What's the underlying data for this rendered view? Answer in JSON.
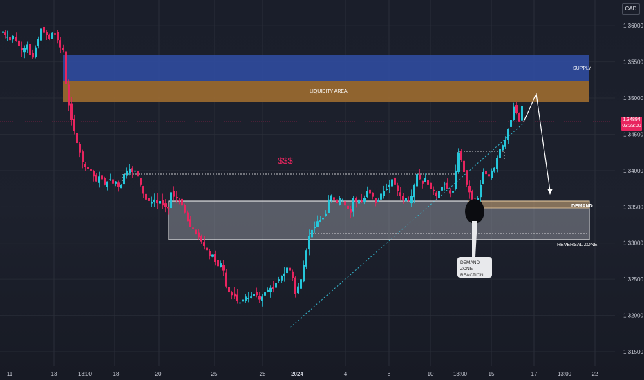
{
  "currency": "CAD",
  "current_price": {
    "price": "1.34894",
    "countdown": "03:23:00"
  },
  "price_axis": [
    "1.36000",
    "1.35500",
    "1.35000",
    "1.34500",
    "1.34000",
    "1.33500",
    "1.33000",
    "1.32500",
    "1.32000",
    "1.31500"
  ],
  "time_axis": [
    "11",
    "13",
    "13:00",
    "18",
    "20",
    "25",
    "28",
    "2024",
    "4",
    "8",
    "10",
    "13:00",
    "15",
    "17",
    "13:00",
    "22"
  ],
  "annotations": {
    "supply": "SUPPLY",
    "liquidity": "LIQUIDITY AREA",
    "dollars": "$$$",
    "demand": "DEMAND",
    "reversal": "REVERSAL ZONE",
    "callout_line1": "DEMAND ZONE",
    "callout_line2": "REACTION"
  },
  "colors": {
    "up": "#26c6da",
    "down": "#e8255f",
    "supply": "#2f4b9c",
    "liquidity": "#9a6a30",
    "background": "#1b1f2b"
  },
  "chart_data": {
    "type": "candlestick",
    "y_range": [
      1.313,
      1.3645
    ],
    "x_labels": [
      "11",
      "13",
      "13:00",
      "18",
      "20",
      "25",
      "28",
      "2024",
      "4",
      "8",
      "10",
      "13:00",
      "15",
      "17",
      "13:00",
      "22"
    ],
    "zones": [
      {
        "name": "SUPPLY",
        "from": 1.3551,
        "to": 1.3588
      },
      {
        "name": "LIQUIDITY AREA",
        "from": 1.3521,
        "to": 1.3551
      },
      {
        "name": "REVERSAL ZONE",
        "from": 1.3312,
        "to": 1.3369
      },
      {
        "name": "DEMAND",
        "from": 1.3358,
        "to": 1.3369
      }
    ],
    "last_price": 1.34894,
    "path": [
      [
        0,
        1.359
      ],
      [
        3,
        1.3592
      ],
      [
        6,
        1.3587
      ],
      [
        9,
        1.3585
      ],
      [
        13,
        1.358
      ],
      [
        17,
        1.3586
      ],
      [
        22,
        1.3579
      ],
      [
        26,
        1.3572
      ],
      [
        30,
        1.3566
      ],
      [
        34,
        1.3569
      ],
      [
        38,
        1.3574
      ],
      [
        42,
        1.356
      ],
      [
        46,
        1.3556
      ],
      [
        50,
        1.357
      ],
      [
        54,
        1.3582
      ],
      [
        58,
        1.3596
      ],
      [
        62,
        1.359
      ],
      [
        66,
        1.3587
      ],
      [
        70,
        1.3582
      ],
      [
        74,
        1.359
      ],
      [
        78,
        1.3588
      ],
      [
        82,
        1.358
      ],
      [
        86,
        1.357
      ],
      [
        90,
        1.3566
      ],
      [
        94,
        1.352
      ],
      [
        98,
        1.349
      ],
      [
        102,
        1.347
      ],
      [
        106,
        1.3455
      ],
      [
        110,
        1.3438
      ],
      [
        114,
        1.3425
      ],
      [
        118,
        1.3412
      ],
      [
        122,
        1.3405
      ],
      [
        126,
        1.3402
      ],
      [
        130,
        1.34
      ],
      [
        134,
        1.3392
      ],
      [
        138,
        1.3385
      ],
      [
        142,
        1.3392
      ],
      [
        146,
        1.3388
      ],
      [
        150,
        1.338
      ],
      [
        154,
        1.3385
      ],
      [
        158,
        1.3388
      ],
      [
        162,
        1.3382
      ],
      [
        166,
        1.3385
      ],
      [
        170,
        1.3378
      ],
      [
        174,
        1.338
      ],
      [
        178,
        1.3395
      ],
      [
        182,
        1.34
      ],
      [
        186,
        1.3402
      ],
      [
        190,
        1.3398
      ],
      [
        194,
        1.34
      ],
      [
        198,
        1.3392
      ],
      [
        202,
        1.338
      ],
      [
        206,
        1.3368
      ],
      [
        210,
        1.336
      ],
      [
        214,
        1.3358
      ],
      [
        218,
        1.3356
      ],
      [
        222,
        1.336
      ],
      [
        226,
        1.3355
      ],
      [
        230,
        1.3358
      ],
      [
        234,
        1.3352
      ],
      [
        238,
        1.335
      ],
      [
        242,
        1.3348
      ],
      [
        246,
        1.337
      ],
      [
        250,
        1.3364
      ],
      [
        254,
        1.3362
      ],
      [
        258,
        1.3358
      ],
      [
        262,
        1.3352
      ],
      [
        266,
        1.3342
      ],
      [
        270,
        1.333
      ],
      [
        274,
        1.3322
      ],
      [
        278,
        1.332
      ],
      [
        282,
        1.3312
      ],
      [
        286,
        1.3308
      ],
      [
        290,
        1.3302
      ],
      [
        294,
        1.3296
      ],
      [
        298,
        1.329
      ],
      [
        302,
        1.3282
      ],
      [
        306,
        1.3284
      ],
      [
        310,
        1.3274
      ],
      [
        314,
        1.3268
      ],
      [
        318,
        1.3272
      ],
      [
        322,
        1.3262
      ],
      [
        326,
        1.324
      ],
      [
        330,
        1.3232
      ],
      [
        334,
        1.3228
      ],
      [
        338,
        1.3226
      ],
      [
        342,
        1.322
      ],
      [
        346,
        1.3218
      ],
      [
        350,
        1.3222
      ],
      [
        354,
        1.3226
      ],
      [
        358,
        1.3224
      ],
      [
        362,
        1.3226
      ],
      [
        366,
        1.323
      ],
      [
        370,
        1.3228
      ],
      [
        374,
        1.3222
      ],
      [
        378,
        1.3226
      ],
      [
        382,
        1.3232
      ],
      [
        386,
        1.3235
      ],
      [
        390,
        1.3238
      ],
      [
        394,
        1.3236
      ],
      [
        398,
        1.3245
      ],
      [
        402,
        1.325
      ],
      [
        406,
        1.3255
      ],
      [
        410,
        1.3258
      ],
      [
        414,
        1.3266
      ],
      [
        418,
        1.3262
      ],
      [
        422,
        1.3252
      ],
      [
        426,
        1.323
      ],
      [
        430,
        1.324
      ],
      [
        434,
        1.325
      ],
      [
        438,
        1.327
      ],
      [
        442,
        1.329
      ],
      [
        446,
        1.331
      ],
      [
        450,
        1.3318
      ],
      [
        454,
        1.3322
      ],
      [
        458,
        1.333
      ],
      [
        462,
        1.3332
      ],
      [
        466,
        1.3335
      ],
      [
        470,
        1.334
      ],
      [
        474,
        1.336
      ],
      [
        478,
        1.3366
      ],
      [
        482,
        1.336
      ],
      [
        486,
        1.3355
      ],
      [
        490,
        1.3362
      ],
      [
        494,
        1.336
      ],
      [
        498,
        1.3352
      ],
      [
        502,
        1.3347
      ],
      [
        506,
        1.3342
      ],
      [
        510,
        1.3362
      ],
      [
        514,
        1.3356
      ],
      [
        518,
        1.336
      ],
      [
        522,
        1.3356
      ],
      [
        526,
        1.3362
      ],
      [
        530,
        1.3372
      ],
      [
        534,
        1.3368
      ],
      [
        538,
        1.3364
      ],
      [
        542,
        1.3355
      ],
      [
        546,
        1.336
      ],
      [
        550,
        1.3368
      ],
      [
        554,
        1.3372
      ],
      [
        558,
        1.3375
      ],
      [
        562,
        1.338
      ],
      [
        566,
        1.3388
      ],
      [
        570,
        1.338
      ],
      [
        574,
        1.3372
      ],
      [
        578,
        1.3365
      ],
      [
        582,
        1.336
      ],
      [
        586,
        1.3362
      ],
      [
        590,
        1.3358
      ],
      [
        594,
        1.3365
      ],
      [
        598,
        1.338
      ],
      [
        602,
        1.3395
      ],
      [
        606,
        1.3388
      ],
      [
        610,
        1.3382
      ],
      [
        614,
        1.339
      ],
      [
        618,
        1.338
      ],
      [
        622,
        1.3375
      ],
      [
        626,
        1.3372
      ],
      [
        630,
        1.3365
      ],
      [
        634,
        1.3372
      ],
      [
        638,
        1.3378
      ],
      [
        642,
        1.3382
      ],
      [
        646,
        1.3375
      ],
      [
        650,
        1.3368
      ],
      [
        654,
        1.3372
      ],
      [
        658,
        1.34
      ],
      [
        662,
        1.3425
      ],
      [
        666,
        1.3415
      ],
      [
        670,
        1.3398
      ],
      [
        674,
        1.338
      ],
      [
        678,
        1.337
      ],
      [
        682,
        1.336
      ],
      [
        686,
        1.3352
      ],
      [
        690,
        1.3362
      ],
      [
        694,
        1.338
      ],
      [
        698,
        1.3398
      ],
      [
        702,
        1.3395
      ],
      [
        706,
        1.3392
      ],
      [
        710,
        1.34
      ],
      [
        714,
        1.3404
      ],
      [
        718,
        1.3418
      ],
      [
        722,
        1.343
      ],
      [
        726,
        1.3435
      ],
      [
        730,
        1.3442
      ],
      [
        734,
        1.3458
      ],
      [
        738,
        1.347
      ],
      [
        742,
        1.3488
      ],
      [
        746,
        1.348
      ],
      [
        750,
        1.3468
      ],
      [
        754,
        1.3489
      ]
    ]
  }
}
